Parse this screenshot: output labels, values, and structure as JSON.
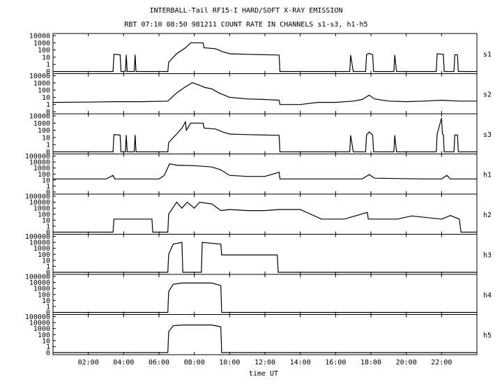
{
  "chart_data": {
    "type": "line",
    "title": "INTERBALL-Tail RF15-I HARD/SOFT X-RAY EMISSION",
    "subtitle": "RBT 07:10 08:50 981211  COUNT RATE IN CHANNELS s1-s3, h1-h5",
    "xlabel": "time UT",
    "x_unit": "hours UT",
    "xlim": [
      0,
      24
    ],
    "x_ticks": [
      {
        "value": 2,
        "label": "02:00"
      },
      {
        "value": 4,
        "label": "04:00"
      },
      {
        "value": 6,
        "label": "06:00"
      },
      {
        "value": 8,
        "label": "08:00"
      },
      {
        "value": 10,
        "label": "10:00"
      },
      {
        "value": 12,
        "label": "12:00"
      },
      {
        "value": 14,
        "label": "14:00"
      },
      {
        "value": 16,
        "label": "16:00"
      },
      {
        "value": 18,
        "label": "18:00"
      },
      {
        "value": 20,
        "label": "20:00"
      },
      {
        "value": 22,
        "label": "22:00"
      }
    ],
    "y_scale": "log",
    "grid": false,
    "series": [
      {
        "name": "s1",
        "ylim": [
          0.1,
          10000
        ],
        "y_tick_labels": [
          "10000",
          "1000",
          "100",
          "10",
          "1",
          "0"
        ],
        "points": [
          [
            0.0,
            0.1
          ],
          [
            3.4,
            0.1
          ],
          [
            3.45,
            25
          ],
          [
            3.8,
            22
          ],
          [
            3.85,
            0.1
          ],
          [
            4.1,
            0.1
          ],
          [
            4.15,
            22
          ],
          [
            4.2,
            0.1
          ],
          [
            4.6,
            0.1
          ],
          [
            4.65,
            22
          ],
          [
            4.7,
            0.1
          ],
          [
            6.5,
            0.1
          ],
          [
            6.55,
            2
          ],
          [
            7.0,
            30
          ],
          [
            7.5,
            200
          ],
          [
            7.8,
            1000
          ],
          [
            8.5,
            1000
          ],
          [
            8.55,
            200
          ],
          [
            9.2,
            150
          ],
          [
            9.6,
            60
          ],
          [
            10.0,
            30
          ],
          [
            11.0,
            25
          ],
          [
            12.0,
            22
          ],
          [
            12.8,
            20
          ],
          [
            12.85,
            0.1
          ],
          [
            16.8,
            0.1
          ],
          [
            16.85,
            20
          ],
          [
            17.0,
            0.1
          ],
          [
            17.7,
            0.1
          ],
          [
            17.75,
            22
          ],
          [
            17.9,
            35
          ],
          [
            18.1,
            22
          ],
          [
            18.15,
            0.1
          ],
          [
            19.3,
            0.1
          ],
          [
            19.35,
            20
          ],
          [
            19.45,
            0.1
          ],
          [
            21.7,
            0.1
          ],
          [
            21.75,
            30
          ],
          [
            22.1,
            25
          ],
          [
            22.15,
            0.1
          ],
          [
            22.7,
            0.1
          ],
          [
            22.75,
            22
          ],
          [
            22.9,
            22
          ],
          [
            22.95,
            0.1
          ],
          [
            24.0,
            0.1
          ]
        ]
      },
      {
        "name": "s2",
        "ylim": [
          0.1,
          10000
        ],
        "y_tick_labels": [
          "10000",
          "1000",
          "100",
          "10",
          "1",
          "0"
        ],
        "points": [
          [
            0.0,
            2
          ],
          [
            2.0,
            2.2
          ],
          [
            3.5,
            2.5
          ],
          [
            5.0,
            2.5
          ],
          [
            6.5,
            3
          ],
          [
            7.0,
            40
          ],
          [
            7.5,
            300
          ],
          [
            7.9,
            1100
          ],
          [
            8.5,
            300
          ],
          [
            8.55,
            250
          ],
          [
            9.0,
            150
          ],
          [
            9.4,
            40
          ],
          [
            10.0,
            10
          ],
          [
            11.0,
            6
          ],
          [
            12.0,
            5
          ],
          [
            12.8,
            4
          ],
          [
            12.85,
            1
          ],
          [
            14.0,
            1
          ],
          [
            15.0,
            2
          ],
          [
            16.0,
            2
          ],
          [
            17.0,
            3
          ],
          [
            17.5,
            5
          ],
          [
            17.9,
            20
          ],
          [
            18.2,
            6
          ],
          [
            19.0,
            3
          ],
          [
            20.0,
            2.5
          ],
          [
            21.0,
            3
          ],
          [
            22.0,
            4
          ],
          [
            23.0,
            3
          ],
          [
            24.0,
            3
          ]
        ]
      },
      {
        "name": "s3",
        "ylim": [
          0.1,
          10000
        ],
        "y_tick_labels": [
          "10000",
          "1000",
          "100",
          "10",
          "1",
          "0"
        ],
        "points": [
          [
            0.0,
            0.1
          ],
          [
            3.4,
            0.1
          ],
          [
            3.45,
            25
          ],
          [
            3.8,
            22
          ],
          [
            3.85,
            0.1
          ],
          [
            4.1,
            0.1
          ],
          [
            4.15,
            22
          ],
          [
            4.2,
            0.1
          ],
          [
            4.6,
            0.1
          ],
          [
            4.65,
            22
          ],
          [
            4.7,
            0.1
          ],
          [
            6.5,
            0.1
          ],
          [
            6.55,
            2
          ],
          [
            7.0,
            30
          ],
          [
            7.3,
            200
          ],
          [
            7.5,
            1500
          ],
          [
            7.55,
            100
          ],
          [
            7.8,
            1000
          ],
          [
            8.5,
            1000
          ],
          [
            8.55,
            200
          ],
          [
            9.2,
            150
          ],
          [
            9.6,
            60
          ],
          [
            10.0,
            30
          ],
          [
            11.0,
            25
          ],
          [
            12.0,
            22
          ],
          [
            12.8,
            20
          ],
          [
            12.85,
            0.1
          ],
          [
            16.8,
            0.1
          ],
          [
            16.85,
            20
          ],
          [
            17.0,
            0.1
          ],
          [
            17.7,
            0.1
          ],
          [
            17.75,
            22
          ],
          [
            17.9,
            60
          ],
          [
            18.1,
            22
          ],
          [
            18.15,
            0.1
          ],
          [
            19.3,
            0.1
          ],
          [
            19.35,
            20
          ],
          [
            19.45,
            0.1
          ],
          [
            21.7,
            0.1
          ],
          [
            21.75,
            30
          ],
          [
            22.0,
            5000
          ],
          [
            22.05,
            30
          ],
          [
            22.1,
            25
          ],
          [
            22.15,
            0.1
          ],
          [
            22.7,
            0.1
          ],
          [
            22.75,
            22
          ],
          [
            22.9,
            22
          ],
          [
            22.95,
            0.1
          ],
          [
            24.0,
            0.1
          ]
        ]
      },
      {
        "name": "h1",
        "ylim": [
          0.1,
          100000
        ],
        "y_tick_labels": [
          "100000",
          "10000",
          "1000",
          "100",
          "10",
          "1",
          "0"
        ],
        "points": [
          [
            0.0,
            15
          ],
          [
            3.0,
            15
          ],
          [
            3.4,
            60
          ],
          [
            3.5,
            15
          ],
          [
            6.0,
            15
          ],
          [
            6.3,
            60
          ],
          [
            6.6,
            5000
          ],
          [
            7.0,
            3000
          ],
          [
            8.0,
            2500
          ],
          [
            9.0,
            1500
          ],
          [
            9.5,
            500
          ],
          [
            10.0,
            60
          ],
          [
            11.0,
            40
          ],
          [
            12.0,
            40
          ],
          [
            12.8,
            200
          ],
          [
            12.85,
            15
          ],
          [
            17.5,
            15
          ],
          [
            17.9,
            80
          ],
          [
            18.2,
            20
          ],
          [
            21.0,
            15
          ],
          [
            22.0,
            15
          ],
          [
            22.3,
            60
          ],
          [
            22.5,
            15
          ],
          [
            24.0,
            15
          ]
        ]
      },
      {
        "name": "h2",
        "ylim": [
          0.1,
          100000
        ],
        "y_tick_labels": [
          "100000",
          "10000",
          "1000",
          "100",
          "10",
          "1",
          "0"
        ],
        "points": [
          [
            0.0,
            0.1
          ],
          [
            3.4,
            0.1
          ],
          [
            3.45,
            15
          ],
          [
            5.6,
            15
          ],
          [
            5.65,
            0.1
          ],
          [
            6.5,
            0.1
          ],
          [
            6.55,
            100
          ],
          [
            7.0,
            10000
          ],
          [
            7.3,
            1000
          ],
          [
            7.6,
            10000
          ],
          [
            8.0,
            1000
          ],
          [
            8.3,
            10000
          ],
          [
            9.0,
            5000
          ],
          [
            9.5,
            400
          ],
          [
            10.0,
            600
          ],
          [
            11.0,
            400
          ],
          [
            12.0,
            400
          ],
          [
            12.8,
            600
          ],
          [
            14.0,
            600
          ],
          [
            15.2,
            15
          ],
          [
            16.5,
            15
          ],
          [
            17.8,
            200
          ],
          [
            17.85,
            15
          ],
          [
            19.5,
            15
          ],
          [
            20.3,
            50
          ],
          [
            22.0,
            15
          ],
          [
            22.5,
            60
          ],
          [
            23.0,
            15
          ],
          [
            23.1,
            0.1
          ],
          [
            24.0,
            0.1
          ]
        ]
      },
      {
        "name": "h3",
        "ylim": [
          0.1,
          100000
        ],
        "y_tick_labels": [
          "100000",
          "10000",
          "1000",
          "100",
          "10",
          "1",
          "0"
        ],
        "points": [
          [
            0.0,
            0.1
          ],
          [
            6.5,
            0.1
          ],
          [
            6.55,
            100
          ],
          [
            6.8,
            5000
          ],
          [
            7.3,
            10000
          ],
          [
            7.35,
            0.1
          ],
          [
            8.4,
            0.1
          ],
          [
            8.45,
            10000
          ],
          [
            9.5,
            5000
          ],
          [
            9.55,
            80
          ],
          [
            12.7,
            80
          ],
          [
            12.75,
            0.1
          ],
          [
            24.0,
            0.1
          ]
        ]
      },
      {
        "name": "h4",
        "ylim": [
          0.1,
          100000
        ],
        "y_tick_labels": [
          "100000",
          "10000",
          "1000",
          "100",
          "10",
          "1",
          "0"
        ],
        "points": [
          [
            0.0,
            0.1
          ],
          [
            6.5,
            0.1
          ],
          [
            6.55,
            300
          ],
          [
            6.8,
            5000
          ],
          [
            7.3,
            8000
          ],
          [
            8.0,
            8000
          ],
          [
            9.0,
            8000
          ],
          [
            9.5,
            3000
          ],
          [
            9.55,
            0.1
          ],
          [
            24.0,
            0.1
          ]
        ]
      },
      {
        "name": "h5",
        "ylim": [
          0.1,
          100000
        ],
        "y_tick_labels": [
          "100000",
          "10000",
          "1000",
          "100",
          "10",
          "1",
          "0"
        ],
        "points": [
          [
            0.0,
            0.1
          ],
          [
            6.5,
            0.1
          ],
          [
            6.55,
            300
          ],
          [
            6.8,
            3000
          ],
          [
            7.3,
            4000
          ],
          [
            8.0,
            4000
          ],
          [
            9.0,
            4000
          ],
          [
            9.5,
            2000
          ],
          [
            9.55,
            0.1
          ],
          [
            24.0,
            0.1
          ]
        ]
      }
    ]
  }
}
